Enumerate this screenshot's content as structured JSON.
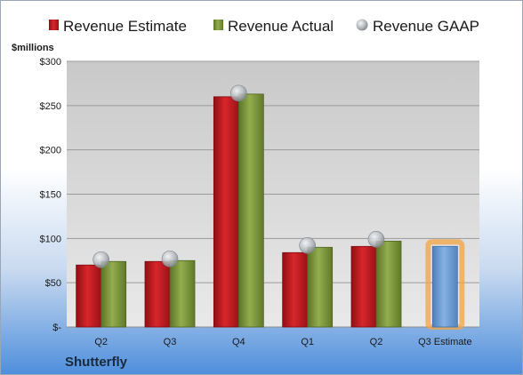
{
  "colors": {
    "estimate": "#c4191f",
    "actual": "#7f9a3c",
    "gaap": "#a8adb4",
    "estimate_current": "#6f9fd6",
    "highlight": "#f2a641"
  },
  "legend": {
    "estimate": "Revenue Estimate",
    "actual": "Revenue Actual",
    "gaap": "Revenue GAAP"
  },
  "company": "Shutterfly",
  "chart_data": {
    "type": "bar",
    "title": "",
    "ylabel": "$millions",
    "xlabel": "",
    "ylim": [
      0,
      300
    ],
    "yticks": [
      0,
      50,
      100,
      150,
      200,
      250,
      300
    ],
    "ytick_labels": [
      "$-",
      "$50",
      "$100",
      "$150",
      "$200",
      "$250",
      "$300"
    ],
    "categories": [
      "Q2",
      "Q3",
      "Q4",
      "Q1",
      "Q2",
      "Q3 Estimate"
    ],
    "series": [
      {
        "name": "Revenue Estimate",
        "values": [
          70,
          74,
          260,
          84,
          91,
          91
        ]
      },
      {
        "name": "Revenue Actual",
        "values": [
          74,
          75,
          263,
          90,
          97,
          null
        ]
      },
      {
        "name": "Revenue GAAP",
        "values": [
          76,
          77,
          264,
          92,
          99,
          null
        ]
      }
    ],
    "grid": true,
    "legend_position": "top"
  }
}
